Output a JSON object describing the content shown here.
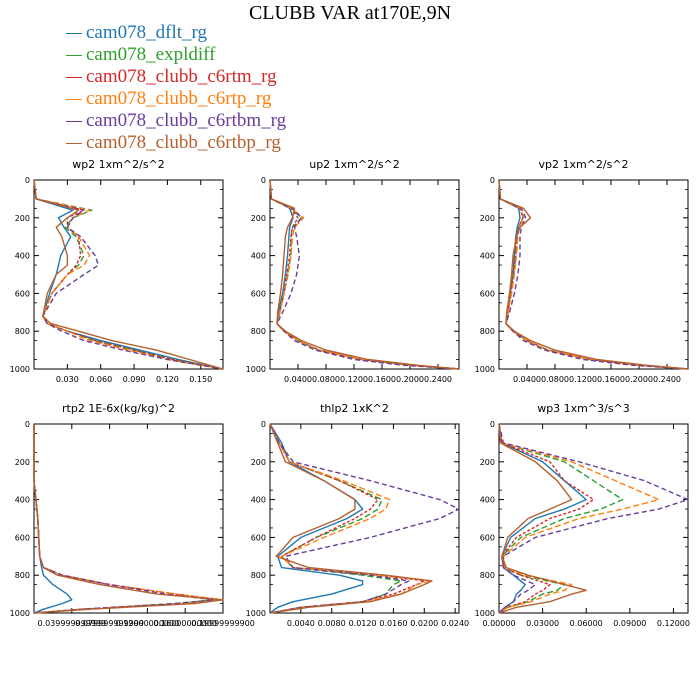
{
  "title": "CLUBB VAR at170E,9N",
  "legend": [
    {
      "name": "cam078_dflt_rg",
      "color": "#1f77b4"
    },
    {
      "name": "cam078_expldiff",
      "color": "#2ca02c"
    },
    {
      "name": "cam078_clubb_c6rtm_rg",
      "color": "#d62728"
    },
    {
      "name": "cam078_clubb_c6rtp_rg",
      "color": "#ff7f0e"
    },
    {
      "name": "cam078_clubb_c6rtbm_rg",
      "color": "#6a3d9a"
    },
    {
      "name": "cam078_clubb_c6rtbp_rg",
      "color": "#b5602f"
    }
  ],
  "chart_data": [
    {
      "type": "line",
      "title": "wp2  1xm^2/s^2",
      "xlim": [
        0.0,
        0.17
      ],
      "ylim": [
        1000,
        0
      ],
      "xticks": [
        "0.030",
        "0.060",
        "0.090",
        "0.120",
        "0.150"
      ],
      "xtick_values": [
        0.03,
        0.06,
        0.09,
        0.12,
        0.15
      ],
      "yticks": [
        0,
        200,
        400,
        600,
        800,
        1000
      ],
      "y": [
        0,
        100,
        160,
        200,
        250,
        300,
        400,
        450,
        500,
        600,
        720,
        760,
        800,
        850,
        900,
        950,
        1000
      ],
      "series": [
        {
          "values": [
            0.0,
            0.002,
            0.035,
            0.022,
            0.027,
            0.033,
            0.024,
            0.022,
            0.02,
            0.014,
            0.008,
            0.012,
            0.03,
            0.06,
            0.095,
            0.13,
            0.17
          ]
        },
        {
          "values": [
            0.0,
            0.002,
            0.052,
            0.035,
            0.028,
            0.038,
            0.045,
            0.04,
            0.03,
            0.016,
            0.008,
            0.012,
            0.03,
            0.055,
            0.09,
            0.125,
            0.17
          ]
        },
        {
          "values": [
            0.0,
            0.002,
            0.045,
            0.03,
            0.03,
            0.04,
            0.042,
            0.038,
            0.03,
            0.016,
            0.008,
            0.012,
            0.03,
            0.055,
            0.09,
            0.125,
            0.17
          ]
        },
        {
          "values": [
            0.0,
            0.002,
            0.05,
            0.035,
            0.03,
            0.04,
            0.05,
            0.045,
            0.03,
            0.016,
            0.008,
            0.012,
            0.03,
            0.05,
            0.085,
            0.12,
            0.17
          ]
        },
        {
          "values": [
            0.0,
            0.002,
            0.045,
            0.035,
            0.03,
            0.042,
            0.055,
            0.058,
            0.045,
            0.02,
            0.008,
            0.012,
            0.025,
            0.045,
            0.08,
            0.12,
            0.17
          ]
        },
        {
          "values": [
            0.0,
            0.002,
            0.04,
            0.03,
            0.02,
            0.025,
            0.03,
            0.03,
            0.02,
            0.012,
            0.008,
            0.015,
            0.04,
            0.07,
            0.11,
            0.14,
            0.17
          ]
        }
      ]
    },
    {
      "type": "line",
      "title": "up2  1xm^2/s^2",
      "xlim": [
        0.0,
        0.27
      ],
      "ylim": [
        1000,
        0
      ],
      "xticks": [
        "0.0400",
        "0.0800",
        "0.1200",
        "0.1600",
        "0.2000",
        "0.2400"
      ],
      "xtick_values": [
        0.04,
        0.08,
        0.12,
        0.16,
        0.2,
        0.24
      ],
      "yticks": [
        0,
        200,
        400,
        600,
        800,
        1000
      ],
      "y": [
        0,
        100,
        150,
        200,
        250,
        300,
        400,
        500,
        600,
        700,
        760,
        800,
        850,
        900,
        950,
        980,
        1000
      ],
      "series": [
        {
          "values": [
            0.0,
            0.002,
            0.028,
            0.033,
            0.028,
            0.027,
            0.025,
            0.022,
            0.018,
            0.012,
            0.01,
            0.02,
            0.04,
            0.07,
            0.13,
            0.2,
            0.27
          ]
        },
        {
          "values": [
            0.0,
            0.002,
            0.03,
            0.045,
            0.032,
            0.03,
            0.03,
            0.025,
            0.02,
            0.014,
            0.01,
            0.02,
            0.04,
            0.07,
            0.13,
            0.2,
            0.27
          ]
        },
        {
          "values": [
            0.0,
            0.002,
            0.03,
            0.04,
            0.032,
            0.03,
            0.028,
            0.024,
            0.02,
            0.014,
            0.01,
            0.02,
            0.04,
            0.07,
            0.13,
            0.2,
            0.27
          ]
        },
        {
          "values": [
            0.0,
            0.002,
            0.03,
            0.048,
            0.035,
            0.032,
            0.03,
            0.026,
            0.02,
            0.014,
            0.01,
            0.02,
            0.04,
            0.07,
            0.13,
            0.2,
            0.27
          ]
        },
        {
          "values": [
            0.0,
            0.002,
            0.032,
            0.045,
            0.035,
            0.038,
            0.042,
            0.038,
            0.03,
            0.018,
            0.01,
            0.02,
            0.035,
            0.065,
            0.12,
            0.19,
            0.27
          ]
        },
        {
          "values": [
            0.0,
            0.002,
            0.035,
            0.032,
            0.025,
            0.022,
            0.02,
            0.018,
            0.015,
            0.011,
            0.01,
            0.022,
            0.045,
            0.08,
            0.14,
            0.21,
            0.27
          ]
        }
      ]
    },
    {
      "type": "line",
      "title": "vp2  1xm^2/s^2",
      "xlim": [
        0.0,
        0.27
      ],
      "ylim": [
        1000,
        0
      ],
      "xticks": [
        "0.0400",
        "0.0800",
        "0.1200",
        "0.1600",
        "0.2000",
        "0.2400"
      ],
      "xtick_values": [
        0.04,
        0.08,
        0.12,
        0.16,
        0.2,
        0.24
      ],
      "yticks": [
        0,
        200,
        400,
        600,
        800,
        1000
      ],
      "y": [
        0,
        100,
        150,
        200,
        250,
        300,
        400,
        500,
        600,
        700,
        760,
        800,
        850,
        900,
        950,
        980,
        1000
      ],
      "series": [
        {
          "values": [
            0.0,
            0.002,
            0.028,
            0.03,
            0.026,
            0.024,
            0.022,
            0.02,
            0.016,
            0.012,
            0.01,
            0.02,
            0.04,
            0.07,
            0.13,
            0.2,
            0.27
          ]
        },
        {
          "values": [
            0.0,
            0.002,
            0.03,
            0.035,
            0.028,
            0.026,
            0.024,
            0.021,
            0.017,
            0.013,
            0.01,
            0.02,
            0.04,
            0.07,
            0.13,
            0.2,
            0.27
          ]
        },
        {
          "values": [
            0.0,
            0.002,
            0.03,
            0.034,
            0.028,
            0.026,
            0.024,
            0.021,
            0.017,
            0.013,
            0.01,
            0.02,
            0.04,
            0.07,
            0.13,
            0.2,
            0.27
          ]
        },
        {
          "values": [
            0.0,
            0.002,
            0.03,
            0.036,
            0.029,
            0.027,
            0.025,
            0.022,
            0.018,
            0.013,
            0.01,
            0.02,
            0.04,
            0.07,
            0.13,
            0.2,
            0.27
          ]
        },
        {
          "values": [
            0.0,
            0.002,
            0.032,
            0.038,
            0.032,
            0.03,
            0.03,
            0.027,
            0.022,
            0.015,
            0.01,
            0.02,
            0.035,
            0.065,
            0.12,
            0.19,
            0.27
          ]
        },
        {
          "values": [
            0.0,
            0.002,
            0.035,
            0.045,
            0.03,
            0.025,
            0.02,
            0.018,
            0.015,
            0.011,
            0.01,
            0.022,
            0.045,
            0.08,
            0.14,
            0.21,
            0.27
          ]
        }
      ]
    },
    {
      "type": "line",
      "title": "rtp2  1E-6x(kg/kg)^2",
      "xlim": [
        0.0,
        0.2
      ],
      "ylim": [
        1000,
        0
      ],
      "xticks": [
        "0.0399999",
        "0.0799999",
        "0.12",
        "0.16",
        "0.2"
      ],
      "xtick_labels": [
        "0.039999999999",
        "0.079999999999",
        "0.12000000000",
        "0.16000000000",
        "0.19999999900"
      ],
      "xtick_values": [
        0.04,
        0.08,
        0.12,
        0.16,
        0.2
      ],
      "yticks": [
        0,
        200,
        400,
        600,
        800,
        1000
      ],
      "y": [
        0,
        200,
        300,
        500,
        700,
        760,
        800,
        850,
        900,
        930,
        950,
        980,
        1000
      ],
      "series": [
        {
          "values": [
            0.0,
            0.0,
            0.0,
            0.004,
            0.006,
            0.008,
            0.01,
            0.02,
            0.035,
            0.04,
            0.03,
            0.01,
            0.0
          ]
        },
        {
          "values": [
            0.0,
            0.0,
            0.0,
            0.004,
            0.006,
            0.01,
            0.03,
            0.08,
            0.15,
            0.19,
            0.15,
            0.05,
            0.0
          ]
        },
        {
          "values": [
            0.0,
            0.0,
            0.0,
            0.004,
            0.006,
            0.01,
            0.03,
            0.08,
            0.15,
            0.2,
            0.16,
            0.05,
            0.0
          ]
        },
        {
          "values": [
            0.0,
            0.0,
            0.0,
            0.004,
            0.006,
            0.01,
            0.03,
            0.08,
            0.15,
            0.2,
            0.16,
            0.05,
            0.0
          ]
        },
        {
          "values": [
            0.0,
            0.0,
            0.0,
            0.004,
            0.006,
            0.01,
            0.03,
            0.08,
            0.14,
            0.19,
            0.15,
            0.05,
            0.0
          ]
        },
        {
          "values": [
            0.0,
            0.0,
            0.0,
            0.004,
            0.006,
            0.01,
            0.025,
            0.07,
            0.13,
            0.2,
            0.17,
            0.06,
            0.0
          ]
        }
      ]
    },
    {
      "type": "line",
      "title": "thlp2  1xK^2",
      "xlim": [
        0.0,
        0.0245
      ],
      "ylim": [
        1000,
        0
      ],
      "xticks": [
        "0.0040",
        "0.0080",
        "0.0120",
        "0.0160",
        "0.0200",
        "0.0240"
      ],
      "xtick_values": [
        0.004,
        0.008,
        0.012,
        0.016,
        0.02,
        0.024
      ],
      "yticks": [
        0,
        200,
        400,
        600,
        800,
        1000
      ],
      "y": [
        0,
        100,
        200,
        300,
        400,
        450,
        500,
        600,
        700,
        760,
        800,
        830,
        850,
        900,
        940,
        970,
        1000
      ],
      "series": [
        {
          "values": [
            0.0,
            0.0015,
            0.0025,
            0.007,
            0.011,
            0.012,
            0.01,
            0.004,
            0.001,
            0.0015,
            0.009,
            0.012,
            0.012,
            0.008,
            0.003,
            0.001,
            0.0
          ]
        },
        {
          "values": [
            0.0,
            0.0012,
            0.0025,
            0.009,
            0.0145,
            0.014,
            0.012,
            0.006,
            0.0015,
            0.003,
            0.012,
            0.017,
            0.016,
            0.015,
            0.012,
            0.004,
            0.0
          ]
        },
        {
          "values": [
            0.0,
            0.0012,
            0.0025,
            0.009,
            0.014,
            0.013,
            0.011,
            0.006,
            0.0015,
            0.003,
            0.014,
            0.02,
            0.019,
            0.016,
            0.012,
            0.004,
            0.0
          ]
        },
        {
          "values": [
            0.0,
            0.0012,
            0.0025,
            0.0095,
            0.0155,
            0.015,
            0.013,
            0.007,
            0.0015,
            0.003,
            0.014,
            0.021,
            0.019,
            0.017,
            0.012,
            0.004,
            0.0
          ]
        },
        {
          "values": [
            0.0,
            0.0012,
            0.003,
            0.013,
            0.022,
            0.0245,
            0.022,
            0.013,
            0.002,
            0.003,
            0.013,
            0.018,
            0.017,
            0.015,
            0.012,
            0.004,
            0.0
          ]
        },
        {
          "values": [
            0.0,
            0.001,
            0.002,
            0.007,
            0.011,
            0.011,
            0.009,
            0.003,
            0.0008,
            0.005,
            0.015,
            0.021,
            0.02,
            0.017,
            0.013,
            0.005,
            0.0
          ]
        }
      ]
    },
    {
      "type": "line",
      "title": "wp3  1xm^3/s^3",
      "xlim": [
        0.0,
        0.13
      ],
      "ylim": [
        1000,
        0
      ],
      "xticks": [
        "0.00000",
        "0.03000",
        "0.06000",
        "0.09000",
        "0.12000"
      ],
      "xtick_values": [
        0.0,
        0.03,
        0.06,
        0.09,
        0.12
      ],
      "yticks": [
        0,
        200,
        400,
        600,
        800,
        1000
      ],
      "y": [
        0,
        100,
        200,
        300,
        400,
        450,
        500,
        600,
        700,
        760,
        800,
        850,
        880,
        900,
        940,
        970,
        1000
      ],
      "series": [
        {
          "values": [
            0.0,
            0.002,
            0.03,
            0.045,
            0.06,
            0.045,
            0.025,
            0.008,
            0.002,
            0.003,
            0.01,
            0.018,
            0.015,
            0.012,
            0.01,
            0.004,
            0.0
          ]
        },
        {
          "values": [
            0.0,
            0.002,
            0.045,
            0.065,
            0.085,
            0.07,
            0.045,
            0.015,
            0.002,
            0.003,
            0.015,
            0.045,
            0.04,
            0.03,
            0.02,
            0.006,
            0.0
          ]
        },
        {
          "values": [
            0.0,
            0.002,
            0.035,
            0.045,
            0.065,
            0.055,
            0.035,
            0.012,
            0.002,
            0.003,
            0.015,
            0.035,
            0.03,
            0.025,
            0.018,
            0.005,
            0.0
          ]
        },
        {
          "values": [
            0.0,
            0.002,
            0.05,
            0.08,
            0.11,
            0.085,
            0.055,
            0.018,
            0.003,
            0.004,
            0.018,
            0.05,
            0.045,
            0.035,
            0.022,
            0.006,
            0.0
          ]
        },
        {
          "values": [
            0.0,
            0.003,
            0.055,
            0.1,
            0.13,
            0.11,
            0.075,
            0.025,
            0.003,
            0.003,
            0.01,
            0.025,
            0.02,
            0.015,
            0.01,
            0.004,
            0.0
          ]
        },
        {
          "values": [
            0.0,
            0.001,
            0.025,
            0.04,
            0.05,
            0.035,
            0.02,
            0.006,
            0.002,
            0.005,
            0.02,
            0.045,
            0.06,
            0.05,
            0.035,
            0.012,
            0.0
          ]
        }
      ]
    }
  ]
}
